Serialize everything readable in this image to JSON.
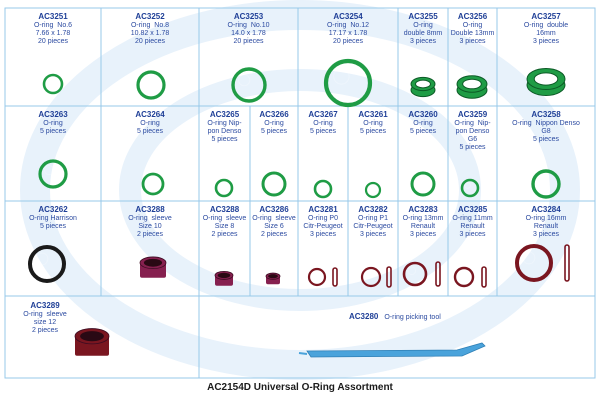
{
  "title": "AC2154D Universal O-Ring Assortment",
  "colors": {
    "grid": "#97c9ea",
    "text": "#1f3f97",
    "green_ring": "#1f9c45",
    "dark_ring": "#1a1a1a",
    "red_ring": "#7a1620",
    "purple_sleeve": "#86204f",
    "tool": "#4aa3db",
    "watermark": "#e8f2fb"
  },
  "items": [
    {
      "code": "AC3251",
      "lines": [
        "O-ring  No.6",
        "7.66 x 1.78",
        "20 pieces"
      ],
      "icon": "o-ring-icon"
    },
    {
      "code": "AC3252",
      "lines": [
        "O-ring  No.8",
        "10.82 x 1.78",
        "20 pieces"
      ],
      "icon": "o-ring-icon"
    },
    {
      "code": "AC3253",
      "lines": [
        "O-ring  No.10",
        "14.0 x 1.78",
        "20 pieces"
      ],
      "icon": "o-ring-icon"
    },
    {
      "code": "AC3254",
      "lines": [
        "O-ring  No.12",
        "17.17 x 1.78",
        "20 pieces"
      ],
      "icon": "o-ring-icon"
    },
    {
      "code": "AC3255",
      "lines": [
        "O-ring",
        "double 8mm",
        "3 pieces"
      ],
      "icon": "double-o-ring-icon"
    },
    {
      "code": "AC3256",
      "lines": [
        "O-ring",
        "Double 13mm",
        "3 pieces"
      ],
      "icon": "double-o-ring-icon"
    },
    {
      "code": "AC3257",
      "lines": [
        "O-ring  double",
        "16mm",
        "3 pieces"
      ],
      "icon": "double-o-ring-icon"
    },
    {
      "code": "AC3263",
      "lines": [
        "O-ring",
        "5 pieces"
      ],
      "icon": "o-ring-icon"
    },
    {
      "code": "AC3264",
      "lines": [
        "O-ring",
        "5 pieces"
      ],
      "icon": "o-ring-icon"
    },
    {
      "code": "AC3265",
      "lines": [
        "O-ring Nip-",
        "pon Denso",
        "5 pieces"
      ],
      "icon": "o-ring-icon"
    },
    {
      "code": "AC3266",
      "lines": [
        "O-ring",
        "5 pieces"
      ],
      "icon": "o-ring-icon"
    },
    {
      "code": "AC3267",
      "lines": [
        "O-ring",
        "5 pieces"
      ],
      "icon": "o-ring-icon"
    },
    {
      "code": "AC3261",
      "lines": [
        "O-ring",
        "5 pieces"
      ],
      "icon": "o-ring-icon"
    },
    {
      "code": "AC3260",
      "lines": [
        "O-ring",
        "5 pieces"
      ],
      "icon": "o-ring-icon"
    },
    {
      "code": "AC3259",
      "lines": [
        "O-ring  Nip-",
        "pon Denso",
        "G6",
        "5 pieces"
      ],
      "icon": "o-ring-icon"
    },
    {
      "code": "AC3258",
      "lines": [
        "O-ring  Nippon Denso",
        "G8",
        "5 pieces"
      ],
      "icon": "o-ring-icon"
    },
    {
      "code": "AC3262",
      "lines": [
        "O-ring Harrison",
        "5 pieces"
      ],
      "icon": "o-ring-icon"
    },
    {
      "code": "AC3288",
      "lines": [
        "O-ring  sleeve",
        "Size 10",
        "2 pieces"
      ],
      "icon": "sleeve-icon"
    },
    {
      "code": "AC3288",
      "lines": [
        "O-ring  sleeve",
        "Size 8",
        "2 pieces"
      ],
      "icon": "sleeve-icon"
    },
    {
      "code": "AC3286",
      "lines": [
        "O-ring  sleeve",
        "Size 6",
        "2 pieces"
      ],
      "icon": "sleeve-icon"
    },
    {
      "code": "AC3281",
      "lines": [
        "O-ring P0",
        "Citr-Peugeot",
        "3 pieces"
      ],
      "icon": "o-ring-icon"
    },
    {
      "code": "AC3282",
      "lines": [
        "O-ring P1",
        "Citr-Peugeot",
        "3 pieces"
      ],
      "icon": "o-ring-icon"
    },
    {
      "code": "AC3283",
      "lines": [
        "O-ring 13mm",
        "Renault",
        "3 pieces"
      ],
      "icon": "o-ring-icon"
    },
    {
      "code": "AC3285",
      "lines": [
        "O-ring 11mm",
        "Renault",
        "3 pieces"
      ],
      "icon": "o-ring-icon"
    },
    {
      "code": "AC3284",
      "lines": [
        "O-ring 16mm",
        "Renault",
        "3 pieces"
      ],
      "icon": "o-ring-icon"
    },
    {
      "code": "AC3289",
      "lines": [
        "O-ring  sleeve",
        "size 12",
        "2 pieces"
      ],
      "icon": "sleeve-icon"
    },
    {
      "code": "AC3280",
      "lines": [
        "O-ring picking tool"
      ],
      "icon": "picking-tool-icon"
    }
  ]
}
